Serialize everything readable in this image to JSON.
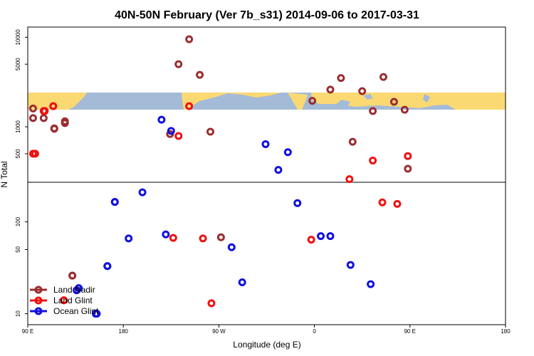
{
  "chart_data": {
    "type": "scatter",
    "title": "40N-50N February (Ver 7b_s31)   2014-09-06 to 2017-03-31",
    "xlabel": "Longitude (deg E)",
    "ylabel": "N Total",
    "x_scale": "longitude, 90 E at left edge through 180, 90 W, 0, 90 E to 180 at right edge",
    "y_scale": "log",
    "xticks": [
      "90 E",
      "180",
      "90 W",
      "0",
      "90 E",
      "180"
    ],
    "yticks_upper": [
      "500",
      "1000",
      "5000",
      "10000"
    ],
    "yticks_lower": [
      "10",
      "50",
      "100"
    ],
    "grid": false,
    "legend": {
      "placement": "bottom-left",
      "entries": [
        "Land Nadir",
        "Land Glint",
        "Ocean Glint"
      ]
    },
    "colors": {
      "land_nadir": "#9b2d30",
      "land_glint": "#ee1111",
      "ocean_glint": "#1010e0",
      "map_ocean": "#a4bbd8",
      "map_land": "#fbd972"
    },
    "panels": [
      {
        "name": "upper",
        "yrange": [
          240,
          13000
        ]
      },
      {
        "name": "lower",
        "yrange": [
          7.6,
          270
        ]
      }
    ],
    "series": [
      {
        "name": "Land Nadir",
        "color_key": "land_nadir",
        "points": [
          {
            "panel": "upper",
            "x": 95,
            "y": 1600
          },
          {
            "panel": "upper",
            "x": 105,
            "y": 1250
          },
          {
            "panel": "upper",
            "x": 115,
            "y": 950
          },
          {
            "panel": "upper",
            "x": 125,
            "y": 1150
          },
          {
            "panel": "upper",
            "x": -136,
            "y": 830
          },
          {
            "panel": "upper",
            "x": -128,
            "y": 5000
          },
          {
            "panel": "upper",
            "x": -118,
            "y": 9500
          },
          {
            "panel": "upper",
            "x": -108,
            "y": 3800
          },
          {
            "panel": "upper",
            "x": -98,
            "y": 880
          },
          {
            "panel": "upper",
            "x": -2,
            "y": 1950
          },
          {
            "panel": "upper",
            "x": 15,
            "y": 2600
          },
          {
            "panel": "upper",
            "x": 25,
            "y": 3500
          },
          {
            "panel": "upper",
            "x": 36,
            "y": 680
          },
          {
            "panel": "upper",
            "x": 45,
            "y": 2500
          },
          {
            "panel": "upper",
            "x": 55,
            "y": 1500
          },
          {
            "panel": "upper",
            "x": 65,
            "y": 3600
          },
          {
            "panel": "upper",
            "x": 75,
            "y": 1900
          },
          {
            "panel": "upper",
            "x": 85,
            "y": 1550
          },
          {
            "panel": "upper",
            "x": 95,
            "y": 1250
          },
          {
            "panel": "upper",
            "x": 115,
            "y": 960
          },
          {
            "panel": "upper",
            "x": 125,
            "y": 1100
          },
          {
            "panel": "upper",
            "x": 88,
            "y": 340
          },
          {
            "panel": "lower",
            "x": 132,
            "y": 26
          },
          {
            "panel": "lower",
            "x": -88,
            "y": 68
          },
          {
            "panel": "lower",
            "x": 132,
            "y": 26
          }
        ]
      },
      {
        "name": "Land Glint",
        "color_key": "land_glint",
        "points": [
          {
            "panel": "upper",
            "x": 95,
            "y": 500
          },
          {
            "panel": "upper",
            "x": 105,
            "y": 1500
          },
          {
            "panel": "upper",
            "x": 114,
            "y": 1700
          },
          {
            "panel": "upper",
            "x": -128,
            "y": 790
          },
          {
            "panel": "upper",
            "x": -118,
            "y": 1700
          },
          {
            "panel": "upper",
            "x": 55,
            "y": 420
          },
          {
            "panel": "upper",
            "x": 33,
            "y": 260
          },
          {
            "panel": "upper",
            "x": 88,
            "y": 470
          },
          {
            "panel": "upper",
            "x": 97,
            "y": 500
          },
          {
            "panel": "upper",
            "x": 106,
            "y": 1500
          },
          {
            "panel": "upper",
            "x": 114,
            "y": 1700
          },
          {
            "panel": "lower",
            "x": 124,
            "y": 14
          },
          {
            "panel": "lower",
            "x": -133,
            "y": 67
          },
          {
            "panel": "lower",
            "x": -105,
            "y": 66
          },
          {
            "panel": "lower",
            "x": -97,
            "y": 13
          },
          {
            "panel": "lower",
            "x": -3,
            "y": 64
          },
          {
            "panel": "lower",
            "x": 64,
            "y": 163
          },
          {
            "panel": "lower",
            "x": 78,
            "y": 157
          },
          {
            "panel": "lower",
            "x": 124,
            "y": 14
          }
        ]
      },
      {
        "name": "Ocean Glint",
        "color_key": "ocean_glint",
        "points": [
          {
            "panel": "upper",
            "x": -144,
            "y": 1200
          },
          {
            "panel": "upper",
            "x": -135,
            "y": 900
          },
          {
            "panel": "upper",
            "x": -46,
            "y": 640
          },
          {
            "panel": "upper",
            "x": -34,
            "y": 330
          },
          {
            "panel": "upper",
            "x": -25,
            "y": 520
          },
          {
            "panel": "lower",
            "x": 136,
            "y": 18
          },
          {
            "panel": "lower",
            "x": 155,
            "y": 10
          },
          {
            "panel": "lower",
            "x": 165,
            "y": 33
          },
          {
            "panel": "lower",
            "x": 172,
            "y": 165
          },
          {
            "panel": "lower",
            "x": -175,
            "y": 66
          },
          {
            "panel": "lower",
            "x": -162,
            "y": 210
          },
          {
            "panel": "lower",
            "x": -140,
            "y": 73
          },
          {
            "panel": "lower",
            "x": -78,
            "y": 53
          },
          {
            "panel": "lower",
            "x": -68,
            "y": 22
          },
          {
            "panel": "lower",
            "x": -16,
            "y": 160
          },
          {
            "panel": "lower",
            "x": 6,
            "y": 70
          },
          {
            "panel": "lower",
            "x": 15,
            "y": 70
          },
          {
            "panel": "lower",
            "x": 34,
            "y": 34
          },
          {
            "panel": "lower",
            "x": 53,
            "y": 21
          },
          {
            "panel": "lower",
            "x": 138,
            "y": 19
          },
          {
            "panel": "lower",
            "x": 154,
            "y": 10
          },
          {
            "panel": "lower",
            "x": 165,
            "y": 33
          },
          {
            "panel": "lower",
            "x": 172,
            "y": 165
          }
        ]
      }
    ]
  }
}
